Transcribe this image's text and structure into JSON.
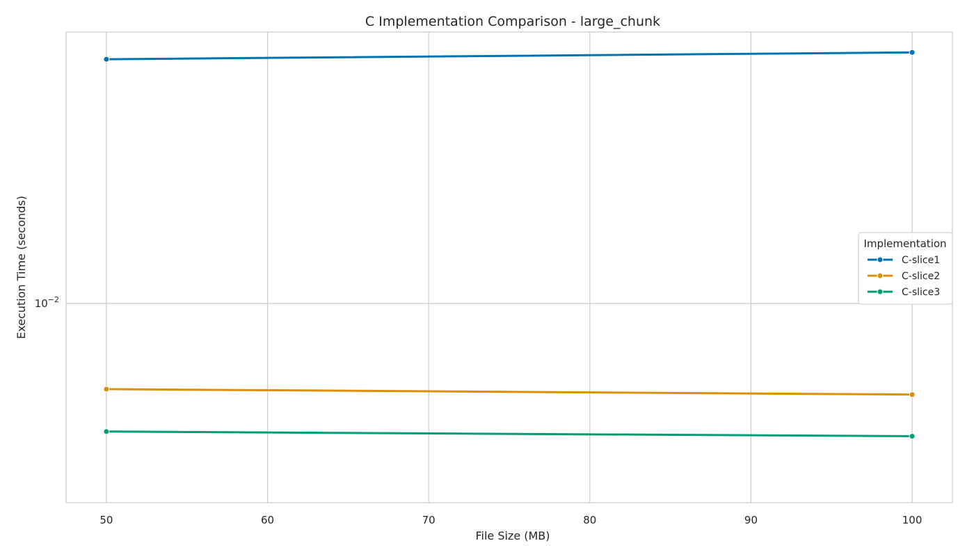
{
  "chart_data": {
    "type": "line",
    "title": "C Implementation Comparison - large_chunk",
    "xlabel": "File Size (MB)",
    "ylabel": "Execution Time (seconds)",
    "x": [
      50,
      100
    ],
    "xlim": [
      47.5,
      102.5
    ],
    "xticks": [
      50,
      60,
      70,
      80,
      90,
      100
    ],
    "yscale": "log",
    "ylim": [
      0.0046,
      0.0288
    ],
    "yticks": [
      0.01
    ],
    "ytick_labels": [
      {
        "base": "10",
        "exp": "−2"
      }
    ],
    "grid": true,
    "legend": {
      "title": "Implementation",
      "placement": "center-right"
    },
    "series": [
      {
        "name": "C-slice1",
        "color": "#0173b2",
        "values": [
          0.0259,
          0.0266
        ]
      },
      {
        "name": "C-slice2",
        "color": "#de8f05",
        "values": [
          0.00716,
          0.00701
        ]
      },
      {
        "name": "C-slice3",
        "color": "#029e73",
        "values": [
          0.00607,
          0.00596
        ]
      }
    ]
  }
}
